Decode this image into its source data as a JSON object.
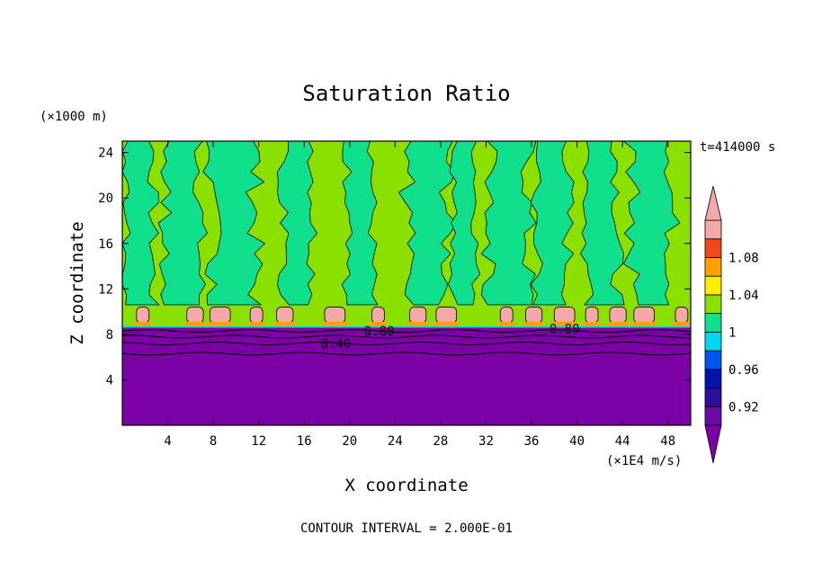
{
  "chart_data": {
    "type": "heatmap",
    "title": "Saturation Ratio",
    "xlabel": "X coordinate",
    "ylabel": "Z coordinate",
    "x_unit": "(×1E4 m/s)",
    "y_unit": "(×1000 m)",
    "time_label": "t=414000 s",
    "footer": "CONTOUR INTERVAL = 2.000E-01",
    "xlim": [
      0,
      50
    ],
    "ylim": [
      0,
      25
    ],
    "x_ticks": [
      4,
      8,
      12,
      16,
      20,
      24,
      28,
      32,
      36,
      40,
      44,
      48
    ],
    "y_ticks": [
      4,
      8,
      12,
      16,
      20,
      24
    ],
    "colorbar": {
      "ticks": [
        "0.92",
        "0.96",
        "1",
        "1.04",
        "1.08"
      ],
      "levels": [
        0.9,
        0.92,
        0.94,
        0.96,
        0.98,
        1.0,
        1.02,
        1.04,
        1.06,
        1.08,
        1.1
      ],
      "colors": [
        "#6a0aa8",
        "#2d0ea0",
        "#0014a8",
        "#0055ee",
        "#00d8f0",
        "#10e08c",
        "#8ce000",
        "#ffee00",
        "#ffa000",
        "#f04818",
        "#f4a8a8"
      ],
      "under_color": "#7b00a6",
      "over_color": "#f4a8a8"
    },
    "contour_labels": [
      {
        "text": "0.40",
        "x": 18.8,
        "z": 7.2
      },
      {
        "text": "0.80",
        "x": 22.6,
        "z": 8.3
      },
      {
        "text": "0.80",
        "x": 38.9,
        "z": 8.5
      }
    ],
    "layers": {
      "dry_layer_top_z": 8.6,
      "cloud_layer_z": [
        8.6,
        10.5
      ],
      "upper_region_z": [
        10.5,
        25
      ]
    }
  }
}
